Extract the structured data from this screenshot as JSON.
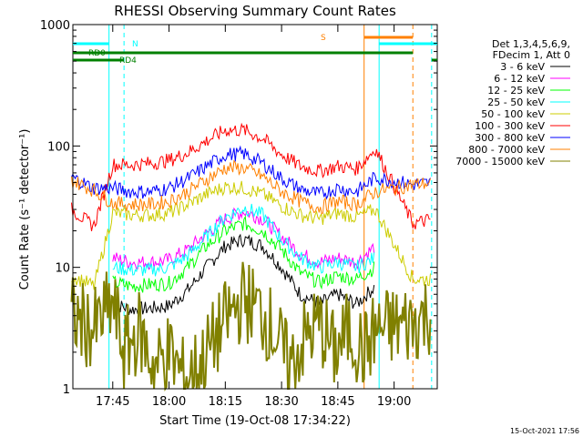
{
  "chart_data": {
    "type": "line",
    "title": "RHESSI Observing Summary Count Rates",
    "xlabel": "Start Time (19-Oct-08 17:34:22)",
    "ylabel": "Count Rate (s⁻¹ detector⁻¹)",
    "y_scale": "log",
    "ylim": [
      1,
      1000
    ],
    "xlim": [
      "17:34:22",
      "19:11:30"
    ],
    "x_ticks": [
      "17:45",
      "18:00",
      "18:15",
      "18:30",
      "18:45",
      "19:00"
    ],
    "y_ticks": [
      "1",
      "10",
      "100",
      "1000"
    ],
    "legend_header": [
      "Det 1,3,4,5,6,9,",
      "FDecim 1, Att 0"
    ],
    "legend_position": "right",
    "series": [
      {
        "name": "3 - 6 keV",
        "color": "#000000",
        "x": [
          "17:34",
          "17:43",
          "17:45",
          "17:50",
          "17:55",
          "18:00",
          "18:05",
          "18:10",
          "18:15",
          "18:20",
          "18:25",
          "18:30",
          "18:35",
          "18:40",
          "18:45",
          "18:50",
          "18:55"
        ],
        "values": [
          null,
          null,
          5,
          4.5,
          4.6,
          4.8,
          6.5,
          10,
          15,
          17,
          15,
          10,
          6,
          5,
          6,
          5,
          7
        ]
      },
      {
        "name": "6 - 12 keV",
        "color": "#ff00ff",
        "x": [
          "17:34",
          "17:43",
          "17:45",
          "17:50",
          "17:55",
          "18:00",
          "18:05",
          "18:10",
          "18:15",
          "18:20",
          "18:25",
          "18:30",
          "18:35",
          "18:40",
          "18:45",
          "18:50",
          "18:55"
        ],
        "values": [
          null,
          null,
          12,
          11,
          11,
          11.5,
          14,
          19,
          25,
          29,
          25,
          18,
          13,
          11,
          12,
          11,
          15
        ]
      },
      {
        "name": "12 - 25 keV",
        "color": "#00ff00",
        "x": [
          "17:34",
          "17:43",
          "17:45",
          "17:50",
          "17:55",
          "18:00",
          "18:05",
          "18:10",
          "18:15",
          "18:20",
          "18:25",
          "18:30",
          "18:35",
          "18:40",
          "18:45",
          "18:50",
          "18:55"
        ],
        "values": [
          null,
          null,
          7.5,
          7,
          7.2,
          7.4,
          10,
          15,
          20,
          23,
          20,
          14,
          9,
          7.5,
          8.5,
          8,
          10
        ]
      },
      {
        "name": "25 - 50 keV",
        "color": "#00ffff",
        "x": [
          "17:34",
          "17:43",
          "17:45",
          "17:50",
          "17:55",
          "18:00",
          "18:05",
          "18:10",
          "18:15",
          "18:20",
          "18:25",
          "18:30",
          "18:35",
          "18:40",
          "18:45",
          "18:50",
          "18:55"
        ],
        "values": [
          null,
          null,
          10,
          9.5,
          9.5,
          10,
          12.5,
          18,
          26,
          31,
          27,
          17,
          12,
          10,
          11,
          10,
          12
        ]
      },
      {
        "name": "50 - 100 keV",
        "color": "#cccc00",
        "x": [
          "17:34",
          "17:36",
          "17:38",
          "17:40",
          "17:45",
          "17:50",
          "17:55",
          "18:00",
          "18:05",
          "18:10",
          "18:15",
          "18:20",
          "18:25",
          "18:30",
          "18:35",
          "18:40",
          "18:45",
          "18:50",
          "18:55",
          "19:05",
          "19:08",
          "19:10"
        ],
        "values": [
          8.5,
          8,
          7.5,
          7,
          28,
          27,
          27,
          28,
          33,
          40,
          46,
          45,
          40,
          32,
          27,
          25,
          28,
          26,
          30,
          8,
          8,
          8
        ]
      },
      {
        "name": "100 - 300 keV",
        "color": "#ff0000",
        "x": [
          "17:34",
          "17:36",
          "17:38",
          "17:40",
          "17:45",
          "17:50",
          "17:55",
          "18:00",
          "18:05",
          "18:10",
          "18:15",
          "18:20",
          "18:25",
          "18:30",
          "18:35",
          "18:40",
          "18:45",
          "18:50",
          "18:55",
          "19:05",
          "19:08",
          "19:10"
        ],
        "values": [
          30,
          27,
          24,
          22,
          70,
          70,
          72,
          76,
          88,
          110,
          135,
          135,
          115,
          85,
          68,
          62,
          68,
          65,
          95,
          23,
          24,
          25
        ]
      },
      {
        "name": "300 - 800 keV",
        "color": "#0000ff",
        "x": [
          "17:34",
          "17:36",
          "17:38",
          "17:40",
          "17:45",
          "17:50",
          "17:55",
          "18:00",
          "18:05",
          "18:10",
          "18:15",
          "18:20",
          "18:25",
          "18:30",
          "18:35",
          "18:40",
          "18:45",
          "18:50",
          "18:55",
          "19:05",
          "19:08",
          "19:10"
        ],
        "values": [
          55,
          52,
          48,
          45,
          45,
          42,
          42,
          45,
          54,
          68,
          85,
          86,
          72,
          54,
          44,
          40,
          45,
          42,
          55,
          48,
          49,
          50
        ]
      },
      {
        "name": "800 - 7000 keV",
        "color": "#ff8000",
        "x": [
          "17:34",
          "17:36",
          "17:38",
          "17:40",
          "17:45",
          "17:50",
          "17:55",
          "18:00",
          "18:05",
          "18:10",
          "18:15",
          "18:20",
          "18:25",
          "18:30",
          "18:35",
          "18:40",
          "18:45",
          "18:50",
          "18:55",
          "19:05",
          "19:08",
          "19:10"
        ],
        "values": [
          52,
          49,
          46,
          43,
          34,
          33,
          33,
          35,
          42,
          53,
          66,
          66,
          56,
          42,
          35,
          31,
          35,
          33,
          42,
          48,
          49,
          50
        ]
      },
      {
        "name": "7000 - 15000 keV",
        "color": "#808000",
        "x": [
          "17:34",
          "17:40",
          "17:45",
          "17:48",
          "17:52",
          "17:56",
          "18:00",
          "18:04",
          "18:08",
          "18:12",
          "18:16",
          "18:20",
          "18:24",
          "18:28",
          "18:32",
          "18:36",
          "18:40",
          "18:44",
          "18:48",
          "18:52",
          "18:55",
          "19:05",
          "19:08",
          "19:10"
        ],
        "values": [
          4,
          3,
          5,
          2,
          3,
          1.5,
          2,
          1.2,
          1.5,
          2.5,
          4,
          5.5,
          4.5,
          3,
          1.5,
          2.5,
          3.5,
          2,
          3,
          2,
          3,
          3.5,
          4,
          4.2
        ]
      }
    ],
    "flags": [
      {
        "label": "RD0",
        "color": "#008000",
        "row": "top"
      },
      {
        "label": "RD4",
        "color": "#008000",
        "row": "second"
      },
      {
        "label": "N",
        "color": "#00ffff"
      },
      {
        "label": "S",
        "color": "#ff8000"
      }
    ],
    "markers": [
      {
        "time": "17:34:22",
        "color": "#00ffff",
        "style": "solid"
      },
      {
        "time": "17:44",
        "color": "#00ffff",
        "style": "solid"
      },
      {
        "time": "17:48",
        "color": "#00ffff",
        "style": "dashed"
      },
      {
        "time": "18:52",
        "color": "#ff8000",
        "style": "solid"
      },
      {
        "time": "18:56",
        "color": "#00ffff",
        "style": "solid"
      },
      {
        "time": "19:05",
        "color": "#ff8000",
        "style": "dashed"
      },
      {
        "time": "19:10",
        "color": "#00ffff",
        "style": "dashed"
      }
    ],
    "grid": false
  },
  "footer": {
    "timestamp": "15-Oct-2021 17:56"
  }
}
